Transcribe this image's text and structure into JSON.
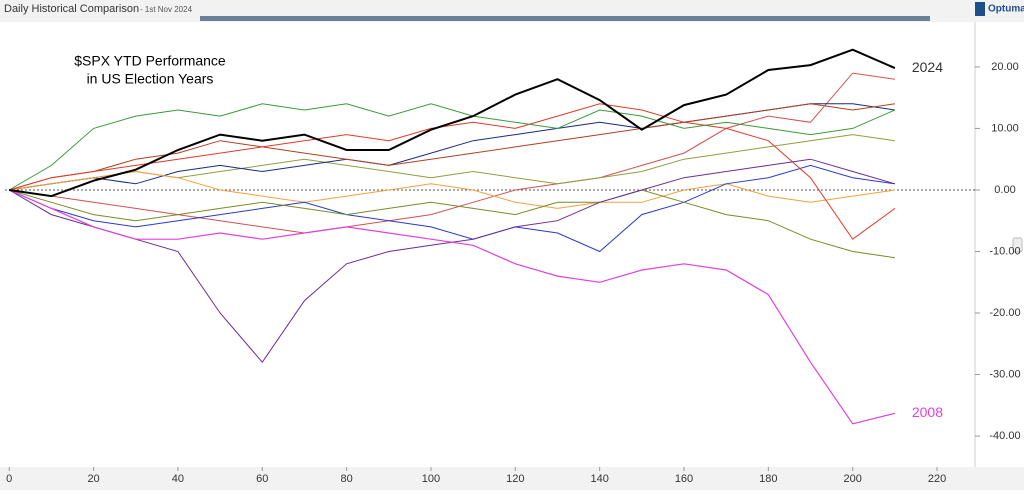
{
  "header": {
    "title": "Daily Historical Comparison",
    "date": "- 1st Nov 2024",
    "logo": "Optuma"
  },
  "chart_data": {
    "type": "line",
    "annotations": [
      "$SPX YTD Performance",
      "in US Election Years"
    ],
    "x": [
      0,
      10,
      20,
      30,
      40,
      50,
      60,
      70,
      80,
      90,
      100,
      110,
      120,
      130,
      140,
      150,
      160,
      170,
      180,
      190,
      200,
      210
    ],
    "xlim": [
      -1,
      229
    ],
    "xticks": [
      0,
      20,
      40,
      60,
      80,
      100,
      120,
      140,
      160,
      180,
      200,
      220
    ],
    "ylim": [
      -44.7,
      27.3
    ],
    "yticks": [
      {
        "value": 20,
        "label": "20.00"
      },
      {
        "value": 10,
        "label": "10.00"
      },
      {
        "value": 0,
        "label": "0.00"
      },
      {
        "value": -10,
        "label": "-10.00"
      },
      {
        "value": -20,
        "label": "-20.00"
      },
      {
        "value": -30,
        "label": "-30.00"
      },
      {
        "value": -40,
        "label": "-40.00"
      }
    ],
    "series": [
      {
        "name": "2024",
        "color": "#000000",
        "values": [
          0,
          -1,
          1.5,
          3.3,
          6.5,
          9,
          8,
          9,
          6.5,
          6.5,
          9.8,
          12,
          15.5,
          18,
          14.6,
          9.8,
          13.8,
          15.5,
          19.5,
          20.3,
          22.8,
          19.8
        ]
      },
      {
        "name": "2008",
        "color": "#e040e0",
        "values": [
          0,
          -3,
          -6,
          -8,
          -8,
          -7,
          -8,
          -7,
          -6,
          -7,
          -8,
          -9,
          -12,
          -14,
          -15,
          -13,
          -12,
          -13,
          -17,
          -28,
          -38,
          -36.3
        ]
      },
      {
        "color": "#3a9a3a",
        "values": [
          0,
          4,
          10,
          12,
          13,
          12,
          14,
          13,
          14,
          12,
          14,
          12,
          11,
          10,
          13,
          12,
          10,
          11,
          10,
          9,
          10,
          13
        ]
      },
      {
        "color": "#6a2d91",
        "values": [
          0,
          -4,
          -6,
          -8,
          -10,
          -20,
          -28,
          -18,
          -12,
          -10,
          -9,
          -8,
          -6,
          -5,
          -2,
          0,
          2,
          3,
          4,
          5,
          3,
          1
        ]
      },
      {
        "color": "#7a8a2a",
        "values": [
          0,
          -2,
          -4,
          -5,
          -4,
          -3,
          -2,
          -3,
          -4,
          -3,
          -2,
          -3,
          -4,
          -2,
          -2,
          0,
          -2,
          -4,
          -5,
          -8,
          -10,
          -11
        ]
      },
      {
        "color": "#e03a2a",
        "values": [
          0,
          2,
          3,
          4,
          5,
          6,
          7,
          8,
          9,
          8,
          10,
          11,
          10,
          12,
          14,
          13,
          11,
          10,
          8,
          2,
          -8,
          -3
        ]
      },
      {
        "color": "#2a3ac8",
        "values": [
          0,
          -3,
          -5,
          -6,
          -5,
          -4,
          -3,
          -2,
          -4,
          -5,
          -6,
          -8,
          -6,
          -7,
          -10,
          -4,
          -2,
          1,
          2,
          4,
          2,
          1
        ]
      },
      {
        "color": "#f0a040",
        "values": [
          0,
          1,
          2,
          3,
          2,
          0,
          -1,
          -2,
          -1,
          0,
          1,
          0,
          -2,
          -3,
          -2,
          -2,
          0,
          1,
          -1,
          -2,
          -1,
          0
        ]
      },
      {
        "color": "#b04020",
        "values": [
          0,
          2,
          3,
          5,
          6,
          8,
          7,
          6,
          5,
          4,
          5,
          6,
          7,
          8,
          9,
          10,
          11,
          12,
          13,
          14,
          13,
          14
        ]
      },
      {
        "color": "#1a2a80",
        "values": [
          0,
          1,
          2,
          1,
          3,
          4,
          3,
          4,
          5,
          4,
          6,
          8,
          9,
          10,
          11,
          10,
          11,
          12,
          13,
          14,
          14,
          13
        ]
      },
      {
        "color": "#8aa040",
        "values": [
          0,
          1,
          2,
          3,
          2,
          3,
          4,
          5,
          4,
          3,
          2,
          3,
          2,
          1,
          2,
          3,
          5,
          6,
          7,
          8,
          9,
          8
        ]
      },
      {
        "color": "#d05050",
        "values": [
          0,
          -1,
          -2,
          -3,
          -4,
          -5,
          -6,
          -7,
          -6,
          -5,
          -4,
          -2,
          0,
          1,
          2,
          4,
          6,
          10,
          12,
          11,
          19,
          18
        ]
      }
    ]
  }
}
